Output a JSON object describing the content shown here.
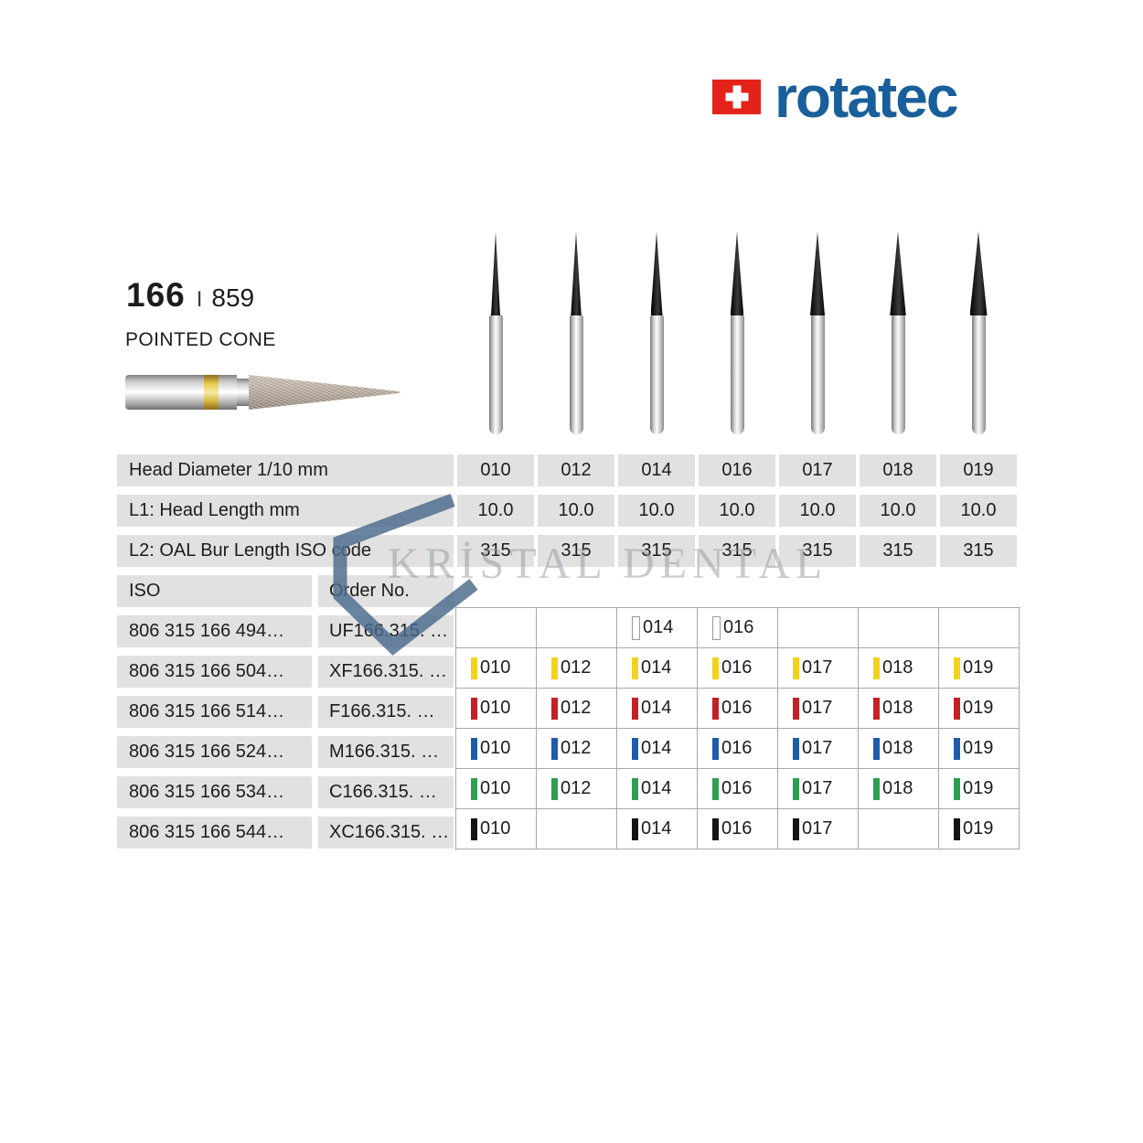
{
  "colors": {
    "brand_blue": "#185f9b",
    "flag_red": "#e3231a",
    "cell_gray": "#e1e1e1",
    "grid_line": "#a8a8a8",
    "watermark_blue": "#4a698a"
  },
  "brand": {
    "name": "rotatec"
  },
  "product": {
    "number": "166",
    "separator": "I",
    "iso_shape_number": "859",
    "name": "POINTED CONE"
  },
  "watermark": {
    "text": "KRİSTAL DENTAL"
  },
  "table": {
    "columns": [
      "010",
      "012",
      "014",
      "016",
      "017",
      "018",
      "019"
    ],
    "spec_rows": [
      {
        "label": "Head Diameter 1/10 mm",
        "values": [
          "010",
          "012",
          "014",
          "016",
          "017",
          "018",
          "019"
        ]
      },
      {
        "label": "L1: Head Length mm",
        "values": [
          "10.0",
          "10.0",
          "10.0",
          "10.0",
          "10.0",
          "10.0",
          "10.0"
        ]
      },
      {
        "label": "L2: OAL Bur Length ISO code",
        "values": [
          "315",
          "315",
          "315",
          "315",
          "315",
          "315",
          "315"
        ]
      }
    ],
    "header": {
      "iso_label": "ISO",
      "order_label": "Order No."
    },
    "grit_rows": [
      {
        "iso": "806 315 166 494…",
        "order": "UF166.315. …",
        "grit": "ultra-fine",
        "color": "#ffffff",
        "outline": true,
        "cells": [
          "",
          "",
          "014",
          "016",
          "",
          "",
          ""
        ]
      },
      {
        "iso": "806 315 166 504…",
        "order": "XF166.315. …",
        "grit": "extra-fine",
        "color": "#f2d21f",
        "outline": false,
        "cells": [
          "010",
          "012",
          "014",
          "016",
          "017",
          "018",
          "019"
        ]
      },
      {
        "iso": "806 315 166 514…",
        "order": "F166.315. …",
        "grit": "fine",
        "color": "#c42127",
        "outline": false,
        "cells": [
          "010",
          "012",
          "014",
          "016",
          "017",
          "018",
          "019"
        ]
      },
      {
        "iso": "806 315 166 524…",
        "order": "M166.315. …",
        "grit": "medium",
        "color": "#1e5ca9",
        "outline": false,
        "cells": [
          "010",
          "012",
          "014",
          "016",
          "017",
          "018",
          "019"
        ]
      },
      {
        "iso": "806 315 166 534…",
        "order": "C166.315. …",
        "grit": "coarse",
        "color": "#2f9e50",
        "outline": false,
        "cells": [
          "010",
          "012",
          "014",
          "016",
          "017",
          "018",
          "019"
        ]
      },
      {
        "iso": "806 315 166 544…",
        "order": "XC166.315. …",
        "grit": "extra-coarse",
        "color": "#141414",
        "outline": false,
        "cells": [
          "010",
          "",
          "014",
          "016",
          "017",
          "",
          "019"
        ]
      }
    ]
  }
}
